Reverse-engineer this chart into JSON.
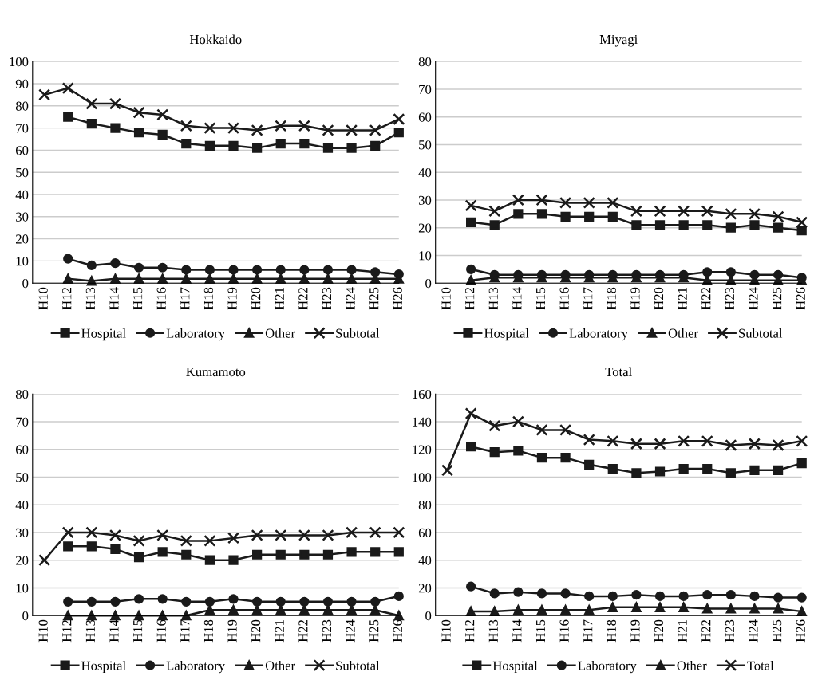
{
  "chart_data": [
    {
      "type": "line",
      "title": "Hokkaido",
      "categories": [
        "H10",
        "H12",
        "H13",
        "H14",
        "H15",
        "H16",
        "H17",
        "H18",
        "H19",
        "H20",
        "H21",
        "H22",
        "H23",
        "H24",
        "H25",
        "H26"
      ],
      "ylim": [
        0,
        100
      ],
      "yticks": [
        0,
        10,
        20,
        30,
        40,
        50,
        60,
        70,
        80,
        90,
        100
      ],
      "grid": "y",
      "legend": "bottom",
      "series": [
        {
          "name": "Hospital",
          "color": "#1a1a1a",
          "marker": "square",
          "values": [
            null,
            75,
            72,
            70,
            68,
            67,
            63,
            62,
            62,
            61,
            63,
            63,
            61,
            61,
            62,
            68
          ]
        },
        {
          "name": "Laboratory",
          "color": "#1a1a1a",
          "marker": "circle",
          "values": [
            null,
            11,
            8,
            9,
            7,
            7,
            6,
            6,
            6,
            6,
            6,
            6,
            6,
            6,
            5,
            4
          ]
        },
        {
          "name": "Other",
          "color": "#1a1a1a",
          "marker": "triangle",
          "values": [
            null,
            2,
            1,
            2,
            2,
            2,
            2,
            2,
            2,
            2,
            2,
            2,
            2,
            2,
            2,
            2
          ]
        },
        {
          "name": "Subtotal",
          "color": "#1a1a1a",
          "marker": "cross",
          "values": [
            85,
            88,
            81,
            81,
            77,
            76,
            71,
            70,
            70,
            69,
            71,
            71,
            69,
            69,
            69,
            74
          ]
        }
      ]
    },
    {
      "type": "line",
      "title": "Miyagi",
      "categories": [
        "H10",
        "H12",
        "H13",
        "H14",
        "H15",
        "H16",
        "H17",
        "H18",
        "H19",
        "H20",
        "H21",
        "H22",
        "H23",
        "H24",
        "H25",
        "H26"
      ],
      "ylim": [
        0,
        80
      ],
      "yticks": [
        0,
        10,
        20,
        30,
        40,
        50,
        60,
        70,
        80
      ],
      "grid": "y",
      "legend": "bottom",
      "series": [
        {
          "name": "Hospital",
          "color": "#1a1a1a",
          "marker": "square",
          "values": [
            null,
            22,
            21,
            25,
            25,
            24,
            24,
            24,
            21,
            21,
            21,
            21,
            20,
            21,
            20,
            19
          ]
        },
        {
          "name": "Laboratory",
          "color": "#1a1a1a",
          "marker": "circle",
          "values": [
            null,
            5,
            3,
            3,
            3,
            3,
            3,
            3,
            3,
            3,
            3,
            4,
            4,
            3,
            3,
            2
          ]
        },
        {
          "name": "Other",
          "color": "#1a1a1a",
          "marker": "triangle",
          "values": [
            null,
            1,
            2,
            2,
            2,
            2,
            2,
            2,
            2,
            2,
            2,
            1,
            1,
            1,
            1,
            1
          ]
        },
        {
          "name": "Subtotal",
          "color": "#1a1a1a",
          "marker": "cross",
          "values": [
            null,
            28,
            26,
            30,
            30,
            29,
            29,
            29,
            26,
            26,
            26,
            26,
            25,
            25,
            24,
            22
          ]
        }
      ]
    },
    {
      "type": "line",
      "title": "Kumamoto",
      "categories": [
        "H10",
        "H12",
        "H13",
        "H14",
        "H15",
        "H16",
        "H17",
        "H18",
        "H19",
        "H20",
        "H21",
        "H22",
        "H23",
        "H24",
        "H25",
        "H26"
      ],
      "ylim": [
        0,
        80
      ],
      "yticks": [
        0,
        10,
        20,
        30,
        40,
        50,
        60,
        70,
        80
      ],
      "grid": "y",
      "legend": "bottom",
      "series": [
        {
          "name": "Hospital",
          "color": "#1a1a1a",
          "marker": "square",
          "values": [
            null,
            25,
            25,
            24,
            21,
            23,
            22,
            20,
            20,
            22,
            22,
            22,
            22,
            23,
            23,
            23
          ]
        },
        {
          "name": "Laboratory",
          "color": "#1a1a1a",
          "marker": "circle",
          "values": [
            null,
            5,
            5,
            5,
            6,
            6,
            5,
            5,
            6,
            5,
            5,
            5,
            5,
            5,
            5,
            7
          ]
        },
        {
          "name": "Other",
          "color": "#1a1a1a",
          "marker": "triangle",
          "values": [
            null,
            0,
            0,
            0,
            0,
            0,
            0,
            2,
            2,
            2,
            2,
            2,
            2,
            2,
            2,
            0
          ]
        },
        {
          "name": "Subtotal",
          "color": "#1a1a1a",
          "marker": "cross",
          "values": [
            20,
            30,
            30,
            29,
            27,
            29,
            27,
            27,
            28,
            29,
            29,
            29,
            29,
            30,
            30,
            30
          ]
        }
      ]
    },
    {
      "type": "line",
      "title": "Total",
      "categories": [
        "H10",
        "H12",
        "H13",
        "H14",
        "H15",
        "H16",
        "H17",
        "H18",
        "H19",
        "H20",
        "H21",
        "H22",
        "H23",
        "H24",
        "H25",
        "H26"
      ],
      "ylim": [
        0,
        160
      ],
      "yticks": [
        0,
        20,
        40,
        60,
        80,
        100,
        120,
        140,
        160
      ],
      "grid": "y",
      "legend": "bottom",
      "series": [
        {
          "name": "Hospital",
          "color": "#1a1a1a",
          "marker": "square",
          "values": [
            null,
            122,
            118,
            119,
            114,
            114,
            109,
            106,
            103,
            104,
            106,
            106,
            103,
            105,
            105,
            110
          ]
        },
        {
          "name": "Laboratory",
          "color": "#1a1a1a",
          "marker": "circle",
          "values": [
            null,
            21,
            16,
            17,
            16,
            16,
            14,
            14,
            15,
            14,
            14,
            15,
            15,
            14,
            13,
            13
          ]
        },
        {
          "name": "Other",
          "color": "#1a1a1a",
          "marker": "triangle",
          "values": [
            null,
            3,
            3,
            4,
            4,
            4,
            4,
            6,
            6,
            6,
            6,
            5,
            5,
            5,
            5,
            3
          ]
        },
        {
          "name": "Total",
          "color": "#1a1a1a",
          "marker": "cross",
          "values": [
            105,
            146,
            137,
            140,
            134,
            134,
            127,
            126,
            124,
            124,
            126,
            126,
            123,
            124,
            123,
            126
          ]
        }
      ]
    }
  ]
}
